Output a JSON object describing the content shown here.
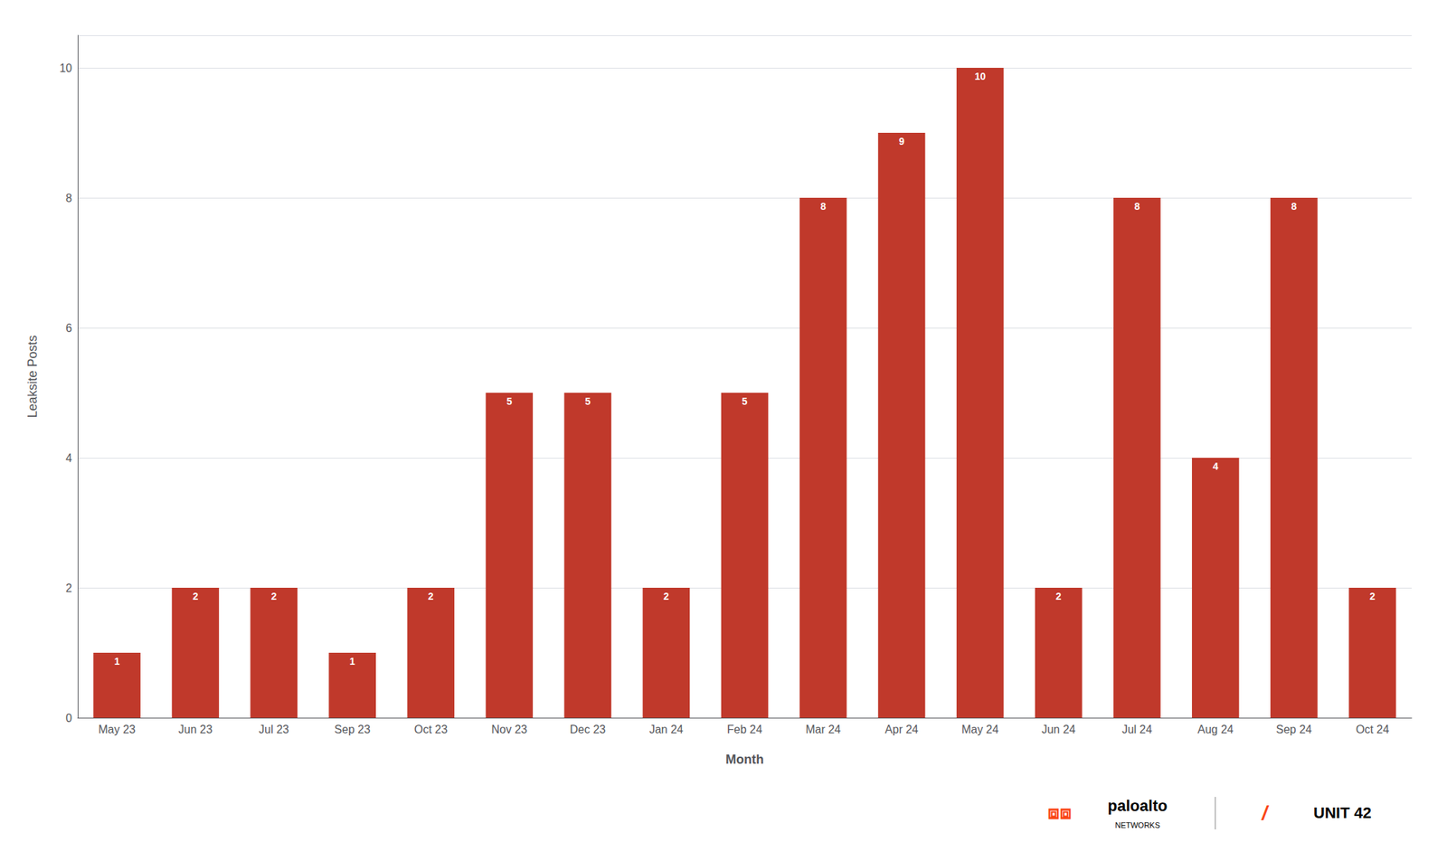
{
  "chart_data": {
    "type": "bar",
    "categories": [
      "May 23",
      "Jun 23",
      "Jul 23",
      "Sep 23",
      "Oct 23",
      "Nov 23",
      "Dec 23",
      "Jan 24",
      "Feb 24",
      "Mar 24",
      "Apr 24",
      "May 24",
      "Jun 24",
      "Jul 24",
      "Aug 24",
      "Sep 24",
      "Oct 24"
    ],
    "values": [
      1,
      2,
      2,
      1,
      2,
      5,
      5,
      2,
      5,
      8,
      9,
      10,
      2,
      8,
      4,
      8,
      2
    ],
    "color": "#C0392B",
    "ylabel": "Leaksite Posts",
    "xlabel": "Month",
    "ylim": [
      0,
      10.5
    ],
    "yticks": [
      0,
      2,
      4,
      6,
      8,
      10
    ],
    "grid": true,
    "data_labels": true,
    "annotations": [
      {
        "text": "⧈⧈",
        "color": "#FA4616"
      },
      {
        "text": "paloalto",
        "color": "#000000"
      },
      {
        "text": "NETWORKS",
        "color": "#000000"
      },
      {
        "text": "/",
        "color": "#FA4616"
      },
      {
        "text": "UNIT 42",
        "color": "#000000"
      }
    ]
  }
}
